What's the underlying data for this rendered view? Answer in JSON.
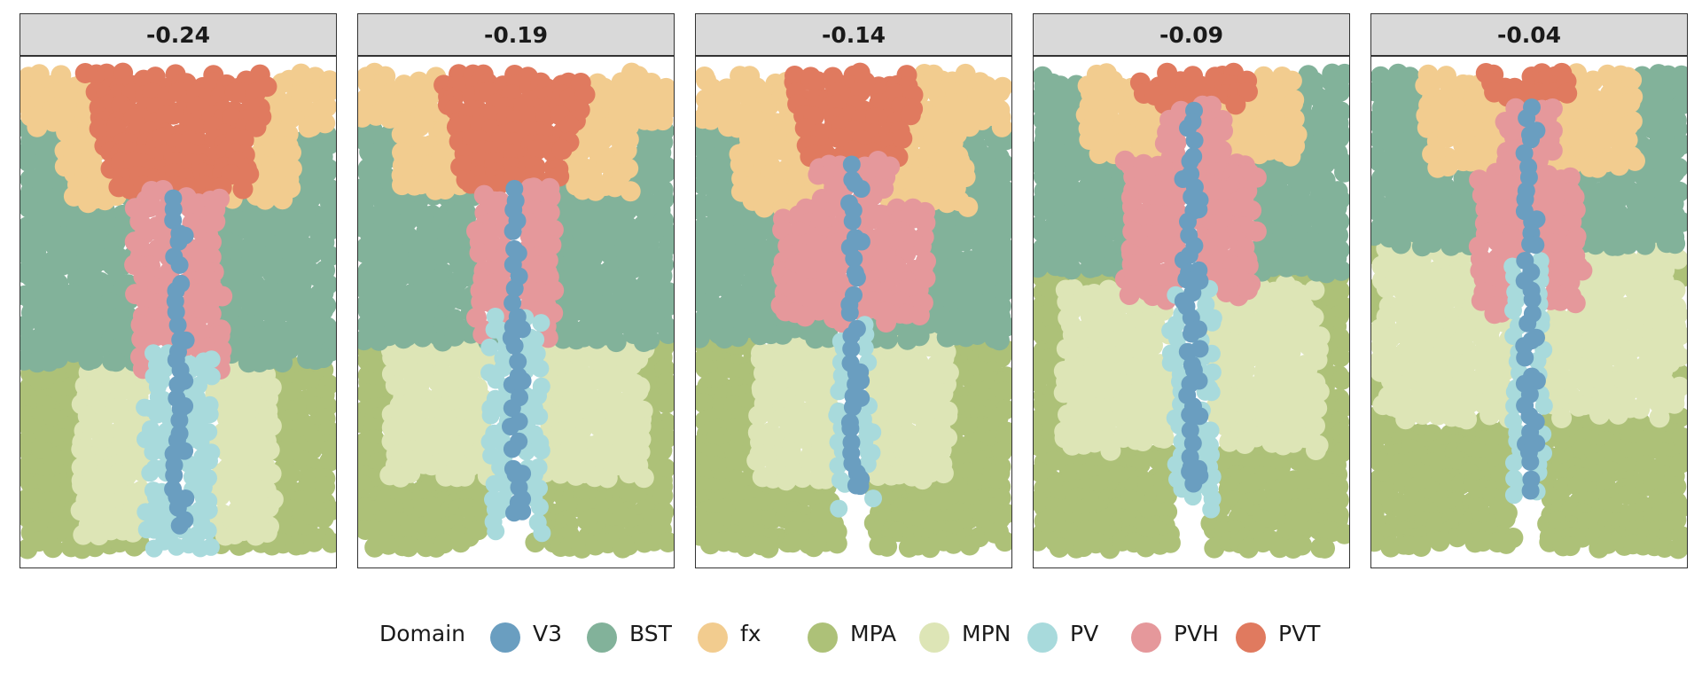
{
  "chart_data": {
    "type": "scatter",
    "layout": "faceted spatial scatter, 5 panels",
    "facets": [
      {
        "label": "-0.24",
        "vertical_stacking_top_to_bottom": [
          "fx / PVT (top)",
          "BST",
          "PVH around V3 midline",
          "MPA / MPN / PV (bottom)"
        ]
      },
      {
        "label": "-0.19",
        "vertical_stacking_top_to_bottom": [
          "fx / PVT (top)",
          "BST",
          "PVH around V3 midline",
          "MPA / MPN / PV (bottom)"
        ]
      },
      {
        "label": "-0.14",
        "vertical_stacking_top_to_bottom": [
          "fx / PVT (top)",
          "BST",
          "PVH around V3 midline",
          "MPA / MPN / PV (bottom)"
        ]
      },
      {
        "label": "-0.09",
        "vertical_stacking_top_to_bottom": [
          "fx / PVT (top)",
          "BST",
          "PVH around V3 midline",
          "MPN / MPA / PV (bottom)"
        ]
      },
      {
        "label": "-0.04",
        "vertical_stacking_top_to_bottom": [
          "fx / PVT (top)",
          "BST",
          "PVH around V3 midline",
          "MPN / MPA / PV (bottom)"
        ]
      }
    ],
    "legend": {
      "title": "Domain",
      "placement": "bottom",
      "entries": [
        {
          "name": "V3",
          "color": "#6a9ec0"
        },
        {
          "name": "BST",
          "color": "#82b29a"
        },
        {
          "name": "fx",
          "color": "#f2cc8f"
        },
        {
          "name": "MPA",
          "color": "#adc178"
        },
        {
          "name": "MPN",
          "color": "#dde5b6"
        },
        {
          "name": "PV",
          "color": "#a8dadc"
        },
        {
          "name": "PVH",
          "color": "#e5989b"
        },
        {
          "name": "PVT",
          "color": "#e07a5f"
        }
      ]
    },
    "axes_visible": false,
    "grid": false
  }
}
